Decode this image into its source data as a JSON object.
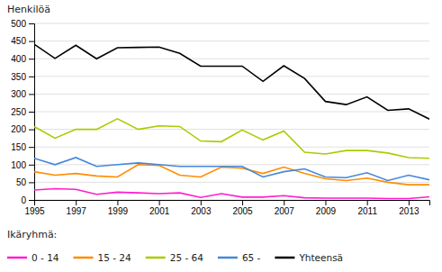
{
  "chart_data": {
    "type": "line",
    "ylabel": "Henkilöä",
    "legend_title": "Ikäryhmä:",
    "legend": "bottom",
    "grid": true,
    "x": [
      1995,
      1996,
      1997,
      1998,
      1999,
      2000,
      2001,
      2002,
      2003,
      2004,
      2005,
      2006,
      2007,
      2008,
      2009,
      2010,
      2011,
      2012,
      2013,
      2014
    ],
    "series": [
      {
        "name": "0 - 14",
        "color": "#ff1dce",
        "values": [
          28,
          32,
          30,
          16,
          22,
          20,
          18,
          20,
          7,
          18,
          8,
          8,
          12,
          6,
          5,
          5,
          5,
          4,
          4,
          9
        ]
      },
      {
        "name": "15 - 24",
        "color": "#ff8c00",
        "values": [
          80,
          70,
          75,
          68,
          65,
          100,
          98,
          70,
          65,
          93,
          90,
          75,
          93,
          75,
          60,
          55,
          62,
          50,
          43,
          43
        ]
      },
      {
        "name": "25 - 64",
        "color": "#aacc00",
        "values": [
          208,
          175,
          200,
          200,
          230,
          200,
          210,
          208,
          167,
          165,
          198,
          170,
          195,
          135,
          130,
          140,
          140,
          133,
          120,
          118
        ]
      },
      {
        "name": "65 -",
        "color": "#4488dd",
        "values": [
          118,
          100,
          120,
          95,
          100,
          105,
          100,
          95,
          95,
          95,
          95,
          65,
          80,
          88,
          65,
          63,
          77,
          55,
          70,
          57
        ]
      },
      {
        "name": "Yhteensä",
        "color": "#000000",
        "values": [
          441,
          401,
          438,
          400,
          431,
          432,
          433,
          415,
          379,
          379,
          379,
          336,
          380,
          344,
          279,
          270,
          292,
          254,
          258,
          229
        ]
      }
    ],
    "xlim": [
      1995,
      2014
    ],
    "xticks": [
      1995,
      1997,
      1999,
      2001,
      2003,
      2005,
      2007,
      2009,
      2011,
      2013
    ],
    "ylim": [
      0,
      500
    ],
    "yticks": [
      0,
      50,
      100,
      150,
      200,
      250,
      300,
      350,
      400,
      450,
      500
    ]
  }
}
